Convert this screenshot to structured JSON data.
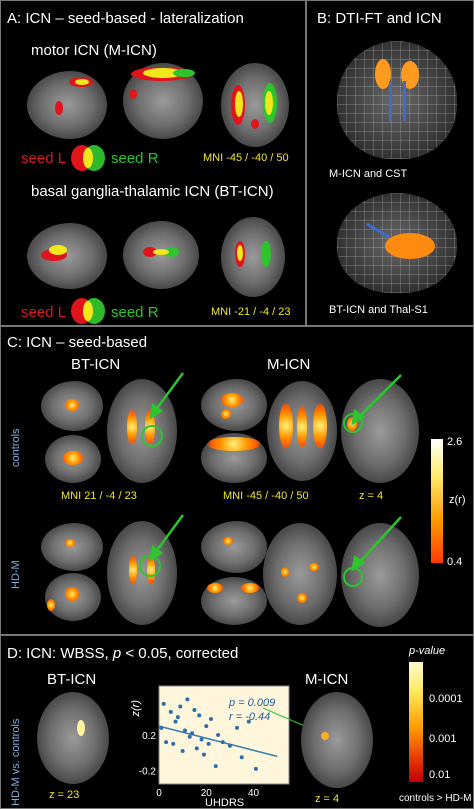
{
  "panelA": {
    "title": "A: ICN – seed-based - lateralization",
    "motor_title": "motor ICN (M-ICN)",
    "bt_title": "basal ganglia-thalamic ICN (BT-ICN)",
    "seed_l": "seed L",
    "seed_r": "seed R",
    "mni_motor": "MNI -45 / -40 / 50",
    "mni_bt": "MNI -21 / -4 / 23"
  },
  "panelB": {
    "title": "B: DTI-FT and ICN",
    "label_top": "M-ICN and CST",
    "label_bottom": "BT-ICN and Thal-S1"
  },
  "panelC": {
    "title": "C: ICN – seed-based",
    "bt_header": "BT-ICN",
    "m_header": "M-ICN",
    "row_controls": "controls",
    "row_hdm": "HD-M",
    "mni_bt": "MNI 21 / -4 / 23",
    "mni_m": "MNI -45 / -40 / 50",
    "z_slice": "z = 4",
    "scale_max": "2.6",
    "scale_min": "0.4",
    "scale_label": "z(r)"
  },
  "panelD": {
    "title_pre": "D: ICN: WBSS, ",
    "title_p": "p",
    "title_post": " < 0.05, corrected",
    "bt_header": "BT-ICN",
    "m_header": "M-ICN",
    "side_label": "HD-M vs. controls",
    "z_left": "z = 23",
    "z_right": "z = 4",
    "scale_title": "p-value",
    "scale_ticks": [
      "0.0001",
      "0.001",
      "0.01"
    ],
    "scale_footer": "controls > HD-M",
    "stat_p": "p = 0.009",
    "stat_r": "r = -0.44"
  },
  "colors": {
    "seed_left": "#e0141b",
    "seed_right": "#2ec42e",
    "overlap": "#f0e81a",
    "caption_yellow": "#f0e81a",
    "side_label_blue": "#7fb2e0",
    "fit_line": "#3a7fb0",
    "scatter_points": "#2e6ea8",
    "stats_text": "#1f5c99"
  },
  "chart_data": {
    "type": "scatter",
    "title": "",
    "xlabel": "UHDRS",
    "ylabel": "z(r)",
    "xlim": [
      0,
      55
    ],
    "ylim": [
      -0.35,
      0.75
    ],
    "xticks": [
      "0",
      "20",
      "40"
    ],
    "yticks": [
      "0.2",
      "-0.2"
    ],
    "x": [
      1,
      2,
      3,
      5,
      6,
      7,
      8,
      9,
      10,
      11,
      12,
      13,
      14,
      15,
      16,
      17,
      18,
      19,
      20,
      21,
      22,
      24,
      25,
      27,
      30,
      33,
      35,
      38,
      41
    ],
    "y": [
      0.28,
      0.55,
      0.12,
      0.46,
      0.1,
      0.35,
      0.4,
      0.52,
      0.02,
      0.25,
      0.6,
      0.18,
      0.22,
      0.48,
      0.05,
      0.42,
      0.15,
      -0.02,
      0.3,
      0.1,
      0.38,
      -0.15,
      0.2,
      0.12,
      0.08,
      0.28,
      -0.05,
      0.35,
      -0.18
    ],
    "fit": {
      "x": [
        0,
        50
      ],
      "y": [
        0.3,
        -0.04
      ]
    }
  }
}
